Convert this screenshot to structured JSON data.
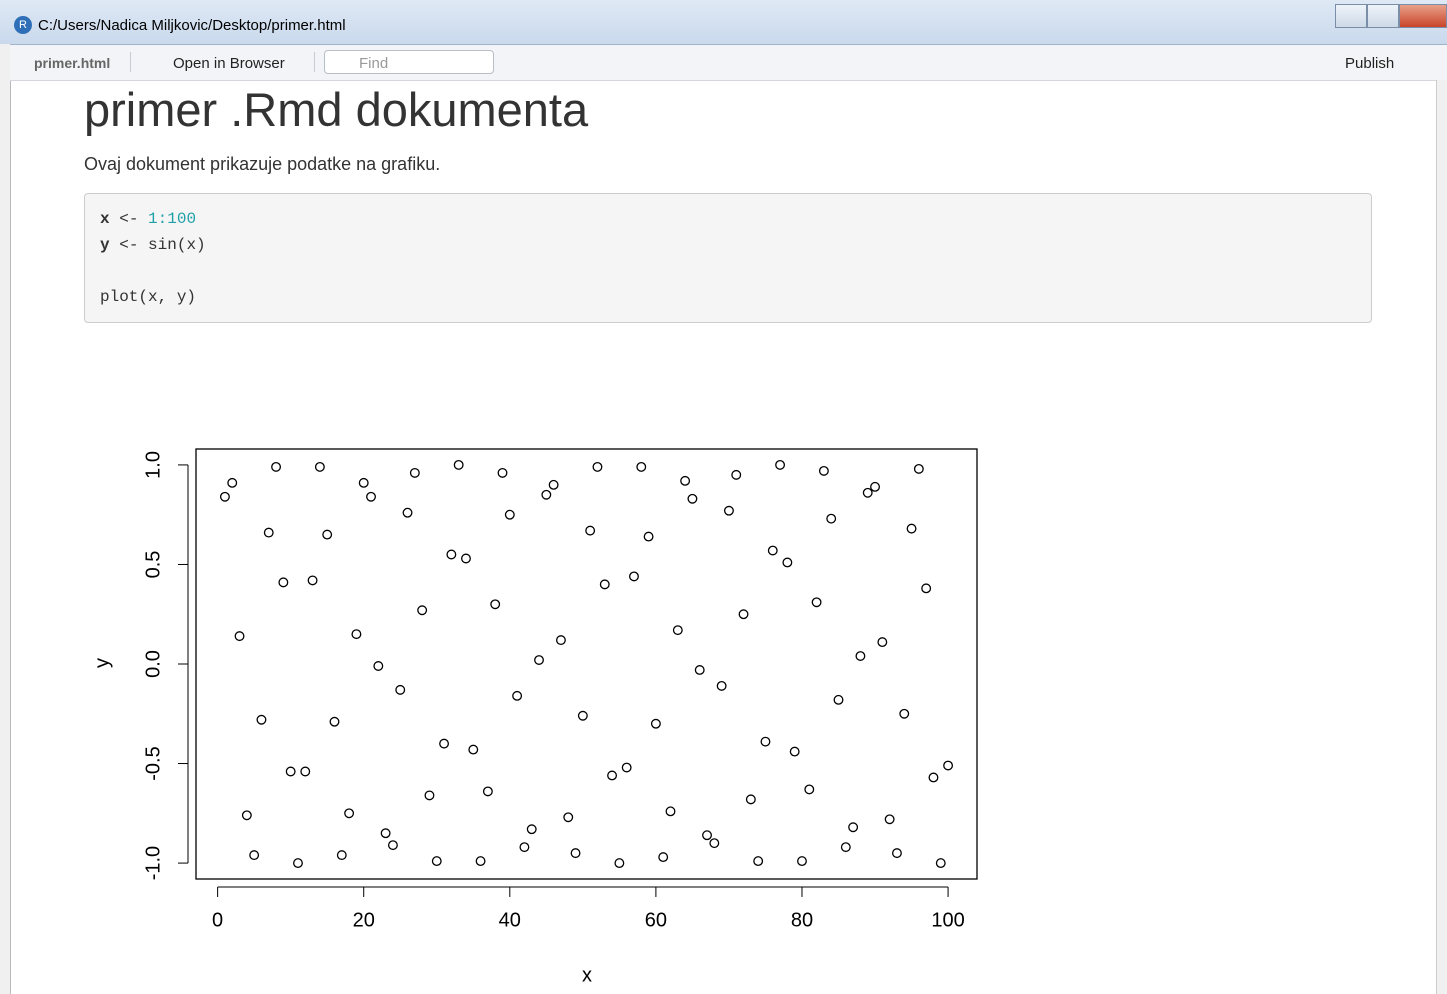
{
  "window": {
    "title": "C:/Users/Nadica Miljkovic/Desktop/primer.html"
  },
  "toolbar": {
    "file": "primer.html",
    "open": "Open in Browser",
    "find": "Find",
    "publish": "Publish"
  },
  "document": {
    "title": "primer .Rmd dokumenta",
    "text": "Ovaj dokument prikazuje podatke na grafiku.",
    "code": [
      [
        "x",
        "<-",
        "1:100"
      ],
      [
        "y",
        "<-",
        "sin(x)"
      ],
      [
        "plot(x,",
        "y)"
      ]
    ]
  },
  "chart_data": {
    "type": "scatter",
    "xlabel": "x",
    "ylabel": "y",
    "color": "#000000",
    "x": [
      1,
      2,
      3,
      4,
      5,
      6,
      7,
      8,
      9,
      10,
      11,
      12,
      13,
      14,
      15,
      16,
      17,
      18,
      19,
      20,
      21,
      22,
      23,
      24,
      25,
      26,
      27,
      28,
      29,
      30,
      31,
      32,
      33,
      34,
      35,
      36,
      37,
      38,
      39,
      40,
      41,
      42,
      43,
      44,
      45,
      46,
      47,
      48,
      49,
      50,
      51,
      52,
      53,
      54,
      55,
      56,
      57,
      58,
      59,
      60,
      61,
      62,
      63,
      64,
      65,
      66,
      67,
      68,
      69,
      70,
      71,
      72,
      73,
      74,
      75,
      76,
      77,
      78,
      79,
      80,
      81,
      82,
      83,
      84,
      85,
      86,
      87,
      88,
      89,
      90,
      91,
      92,
      93,
      94,
      95,
      96,
      97,
      98,
      99,
      100
    ],
    "values": [
      0.84,
      0.91,
      0.14,
      -0.76,
      -0.96,
      -0.28,
      0.66,
      0.99,
      0.41,
      -0.54,
      -1.0,
      -0.54,
      0.42,
      0.99,
      0.65,
      -0.29,
      -0.96,
      -0.75,
      0.15,
      0.91,
      0.84,
      -0.01,
      -0.85,
      -0.91,
      -0.13,
      0.76,
      0.96,
      0.27,
      -0.66,
      -0.99,
      -0.4,
      0.55,
      1.0,
      0.53,
      -0.43,
      -0.99,
      -0.64,
      0.3,
      0.96,
      0.75,
      -0.16,
      -0.92,
      -0.83,
      0.02,
      0.85,
      0.9,
      0.12,
      -0.77,
      -0.95,
      -0.26,
      0.67,
      0.99,
      0.4,
      -0.56,
      -1.0,
      -0.52,
      0.44,
      0.99,
      0.64,
      -0.3,
      -0.97,
      -0.74,
      0.17,
      0.92,
      0.83,
      -0.03,
      -0.86,
      -0.9,
      -0.11,
      0.77,
      0.95,
      0.25,
      -0.68,
      -0.99,
      -0.39,
      0.57,
      1.0,
      0.51,
      -0.44,
      -0.99,
      -0.63,
      0.31,
      0.97,
      0.73,
      -0.18,
      -0.92,
      -0.82,
      0.04,
      0.86,
      0.89,
      0.11,
      -0.78,
      -0.95,
      -0.25,
      0.68,
      0.98,
      0.38,
      -0.57,
      -1.0,
      -0.51
    ],
    "xlim": [
      -2.96,
      103.96
    ],
    "ylim": [
      -1.08,
      1.08
    ],
    "xticks": [
      0,
      20,
      40,
      60,
      80,
      100
    ],
    "yticks": [
      {
        "value": -1,
        "label": "-1.0"
      },
      -0.5,
      {
        "value": 0,
        "label": "0.0"
      },
      0.5,
      {
        "value": 1,
        "label": "1.0"
      }
    ]
  }
}
